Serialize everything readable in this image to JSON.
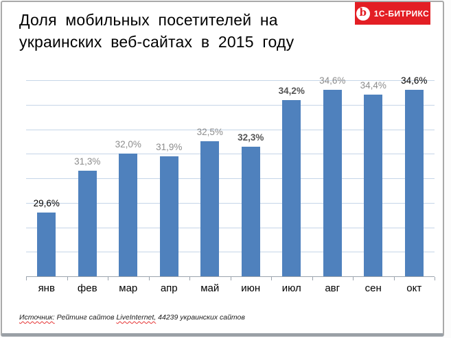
{
  "title": {
    "line1": "Доля мобильных посетителей на",
    "line2": "украинских веб-сайтах в 2015 году"
  },
  "logo": {
    "label": "1С-БИТРИКС",
    "icon_letter": "b",
    "bg_color": "#e31e24",
    "text_color": "#ffffff"
  },
  "chart_data": {
    "type": "bar",
    "title": "Доля мобильных посетителей на украинских веб-сайтах в 2015 году",
    "categories": [
      "янв",
      "фев",
      "мар",
      "апр",
      "май",
      "июн",
      "июл",
      "авг",
      "сен",
      "окт"
    ],
    "values": [
      29.6,
      31.3,
      32.0,
      31.9,
      32.5,
      32.3,
      34.2,
      34.6,
      34.4,
      34.6
    ],
    "data_labels": [
      "29,6%",
      "31,3%",
      "32,0%",
      "31,9%",
      "32,5%",
      "32,3%",
      "34,2%",
      "34,6%",
      "34,4%",
      "34,6%"
    ],
    "data_label_styles": [
      "black",
      "gray",
      "gray",
      "gray",
      "gray",
      "bold-dark",
      "bold-dark",
      "gray",
      "gray",
      "black"
    ],
    "xlabel": "",
    "ylabel": "",
    "ylim": [
      27,
      35
    ],
    "gridline_step": 1,
    "grid": true,
    "y_axis_labels_visible": false,
    "legend": "none",
    "bar_color": "#4f81bd",
    "gridline_color": "#c5d5e8",
    "axis_color": "#9aa3ad"
  },
  "source": {
    "segments": [
      {
        "text": "Источник:",
        "misspelled": true
      },
      {
        "text": " Рейтинг сайтов ",
        "misspelled": false
      },
      {
        "text": "LiveInternet,",
        "misspelled": true
      },
      {
        "text": " 44239 украинских сайтов",
        "misspelled": false
      }
    ]
  }
}
